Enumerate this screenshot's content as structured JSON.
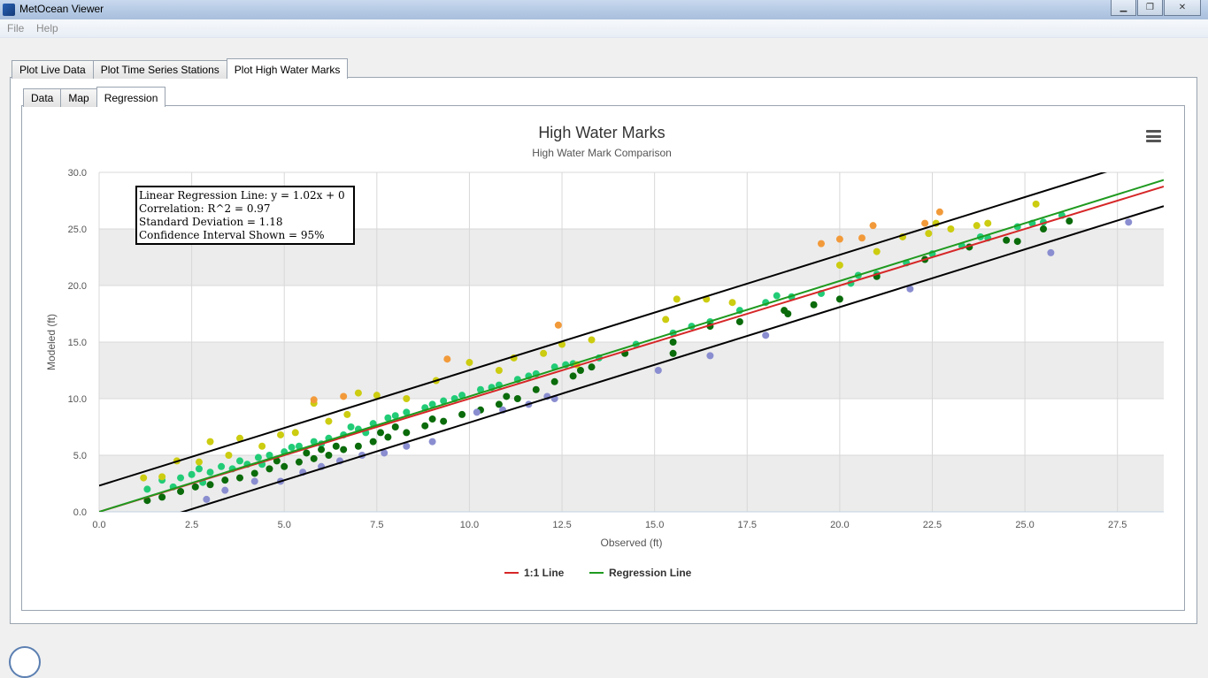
{
  "window": {
    "title": "MetOcean Viewer",
    "controls": [
      "minimize",
      "maximize",
      "close"
    ]
  },
  "menu": {
    "items": [
      "File",
      "Help"
    ]
  },
  "main_tabs": [
    {
      "label": "Plot Live Data",
      "active": false
    },
    {
      "label": "Plot Time Series Stations",
      "active": false
    },
    {
      "label": "Plot High Water Marks",
      "active": true
    }
  ],
  "sub_tabs": [
    {
      "label": "Data",
      "active": false
    },
    {
      "label": "Map",
      "active": false
    },
    {
      "label": "Regression",
      "active": true
    }
  ],
  "stats_box": {
    "line1": "Linear Regression Line: y = 1.02x + 0",
    "line2": "Correlation: R^2 = 0.97",
    "line3": "Standard Deviation = 1.18",
    "line4": "Confidence Interval Shown = 95%"
  },
  "chart_data": {
    "type": "scatter",
    "title": "High Water Marks",
    "subtitle": "High Water Mark Comparison",
    "xlabel": "Observed (ft)",
    "ylabel": "Modeled (ft)",
    "xlim": [
      0,
      28.75
    ],
    "ylim": [
      0,
      30
    ],
    "x_ticks": [
      "0.0",
      "2.5",
      "5.0",
      "7.5",
      "10.0",
      "12.5",
      "15.0",
      "17.5",
      "20.0",
      "22.5",
      "25.0",
      "27.5"
    ],
    "y_ticks": [
      "0.0",
      "5.0",
      "10.0",
      "15.0",
      "20.0",
      "25.0",
      "30.0"
    ],
    "grid": true,
    "legend_position": "bottom-center",
    "series": [
      {
        "name": "1:1 Line",
        "kind": "line",
        "color": "#d62728",
        "x": [
          0,
          28.75
        ],
        "y": [
          0,
          28.75
        ]
      },
      {
        "name": "Regression Line",
        "kind": "line",
        "color": "#1f9a1f",
        "x": [
          0,
          28.75
        ],
        "y": [
          0,
          29.33
        ]
      }
    ],
    "confidence_lines": [
      {
        "color": "#000000",
        "x": [
          0,
          28.75
        ],
        "y": [
          2.31,
          31.64
        ]
      },
      {
        "color": "#000000",
        "x": [
          0,
          28.75
        ],
        "y": [
          -2.31,
          27.02
        ]
      }
    ],
    "point_colors": {
      "light_green": "#22cc77",
      "dark_green": "#0a6b0a",
      "yellow": "#cccc11",
      "orange": "#f29a3a",
      "lavender": "#8a8ed0"
    },
    "points": {
      "light_green": [
        [
          1.3,
          2.0
        ],
        [
          1.7,
          2.8
        ],
        [
          2.0,
          2.2
        ],
        [
          2.2,
          3.0
        ],
        [
          2.5,
          3.3
        ],
        [
          2.8,
          2.6
        ],
        [
          3.0,
          3.5
        ],
        [
          3.3,
          4.0
        ],
        [
          3.6,
          3.8
        ],
        [
          4.0,
          4.2
        ],
        [
          4.3,
          4.8
        ],
        [
          4.6,
          5.0
        ],
        [
          5.0,
          5.3
        ],
        [
          5.4,
          5.8
        ],
        [
          5.8,
          6.2
        ],
        [
          6.2,
          6.5
        ],
        [
          6.6,
          6.8
        ],
        [
          7.0,
          7.3
        ],
        [
          7.4,
          7.8
        ],
        [
          7.8,
          8.3
        ],
        [
          8.3,
          8.8
        ],
        [
          8.8,
          9.2
        ],
        [
          9.3,
          9.8
        ],
        [
          9.8,
          10.3
        ],
        [
          10.3,
          10.8
        ],
        [
          10.8,
          11.2
        ],
        [
          11.3,
          11.7
        ],
        [
          11.8,
          12.2
        ],
        [
          12.3,
          12.8
        ],
        [
          12.8,
          13.1
        ],
        [
          13.5,
          13.6
        ],
        [
          14.5,
          14.8
        ],
        [
          15.5,
          15.8
        ],
        [
          16.5,
          16.8
        ],
        [
          17.3,
          17.8
        ],
        [
          18.0,
          18.5
        ],
        [
          18.7,
          19.0
        ],
        [
          19.5,
          19.3
        ],
        [
          20.3,
          20.2
        ],
        [
          21.0,
          21.0
        ],
        [
          21.8,
          22.0
        ],
        [
          22.5,
          22.8
        ],
        [
          23.3,
          23.5
        ],
        [
          24.0,
          24.2
        ],
        [
          24.8,
          25.2
        ],
        [
          25.5,
          25.6
        ],
        [
          26.0,
          26.2
        ],
        [
          3.8,
          4.5
        ],
        [
          5.2,
          5.7
        ],
        [
          6.8,
          7.5
        ],
        [
          8.0,
          8.5
        ],
        [
          9.0,
          9.5
        ],
        [
          10.6,
          11.0
        ],
        [
          11.6,
          12.0
        ],
        [
          12.6,
          13.0
        ],
        [
          16.0,
          16.4
        ],
        [
          18.3,
          19.1
        ],
        [
          20.5,
          20.9
        ],
        [
          23.8,
          24.3
        ],
        [
          25.2,
          25.5
        ],
        [
          2.7,
          3.8
        ],
        [
          4.4,
          4.2
        ],
        [
          6.0,
          6.0
        ],
        [
          7.2,
          7.0
        ],
        [
          9.6,
          10.0
        ]
      ],
      "dark_green": [
        [
          1.3,
          1.0
        ],
        [
          1.7,
          1.3
        ],
        [
          2.2,
          1.8
        ],
        [
          2.6,
          2.2
        ],
        [
          3.0,
          2.4
        ],
        [
          3.4,
          2.8
        ],
        [
          3.8,
          3.0
        ],
        [
          4.2,
          3.4
        ],
        [
          4.6,
          3.8
        ],
        [
          5.0,
          4.0
        ],
        [
          5.4,
          4.4
        ],
        [
          5.8,
          4.7
        ],
        [
          6.2,
          5.0
        ],
        [
          6.6,
          5.5
        ],
        [
          7.0,
          5.8
        ],
        [
          7.4,
          6.2
        ],
        [
          7.8,
          6.6
        ],
        [
          8.3,
          7.0
        ],
        [
          8.8,
          7.6
        ],
        [
          9.3,
          8.0
        ],
        [
          9.8,
          8.6
        ],
        [
          10.3,
          9.0
        ],
        [
          10.8,
          9.5
        ],
        [
          11.3,
          10.0
        ],
        [
          11.8,
          10.8
        ],
        [
          12.3,
          11.5
        ],
        [
          12.8,
          12.0
        ],
        [
          13.3,
          12.8
        ],
        [
          14.2,
          14.0
        ],
        [
          15.5,
          15.0
        ],
        [
          15.5,
          14.0
        ],
        [
          16.5,
          16.4
        ],
        [
          17.3,
          16.8
        ],
        [
          18.5,
          17.8
        ],
        [
          19.3,
          18.3
        ],
        [
          20.0,
          18.8
        ],
        [
          21.0,
          20.8
        ],
        [
          22.3,
          22.3
        ],
        [
          23.5,
          23.4
        ],
        [
          24.5,
          24.0
        ],
        [
          25.5,
          25.0
        ],
        [
          26.2,
          25.7
        ],
        [
          6.0,
          5.5
        ],
        [
          7.6,
          7.0
        ],
        [
          9.0,
          8.2
        ],
        [
          11.0,
          10.2
        ],
        [
          13.0,
          12.5
        ],
        [
          18.6,
          17.5
        ],
        [
          24.8,
          23.9
        ],
        [
          4.8,
          4.5
        ],
        [
          5.6,
          5.2
        ],
        [
          6.4,
          5.8
        ],
        [
          8.0,
          7.5
        ]
      ],
      "yellow": [
        [
          1.2,
          3.0
        ],
        [
          1.7,
          3.1
        ],
        [
          2.1,
          4.5
        ],
        [
          2.7,
          4.4
        ],
        [
          3.0,
          6.2
        ],
        [
          3.5,
          5.0
        ],
        [
          3.8,
          6.5
        ],
        [
          4.4,
          5.8
        ],
        [
          4.9,
          6.8
        ],
        [
          5.3,
          7.0
        ],
        [
          5.8,
          9.6
        ],
        [
          6.2,
          8.0
        ],
        [
          6.7,
          8.6
        ],
        [
          7.0,
          10.5
        ],
        [
          7.5,
          10.3
        ],
        [
          8.3,
          10.0
        ],
        [
          9.1,
          11.6
        ],
        [
          10.0,
          13.2
        ],
        [
          10.8,
          12.5
        ],
        [
          11.2,
          13.6
        ],
        [
          12.0,
          14.0
        ],
        [
          12.5,
          14.8
        ],
        [
          13.3,
          15.2
        ],
        [
          15.3,
          17.0
        ],
        [
          15.6,
          18.8
        ],
        [
          16.4,
          18.8
        ],
        [
          17.1,
          18.5
        ],
        [
          20.0,
          21.8
        ],
        [
          21.0,
          23.0
        ],
        [
          21.7,
          24.3
        ],
        [
          22.4,
          24.6
        ],
        [
          23.0,
          25.0
        ],
        [
          23.7,
          25.3
        ],
        [
          24.0,
          25.5
        ],
        [
          25.3,
          27.2
        ],
        [
          22.6,
          25.5
        ],
        [
          12.9,
          13.0
        ]
      ],
      "orange": [
        [
          5.8,
          9.9
        ],
        [
          6.6,
          10.2
        ],
        [
          9.4,
          13.5
        ],
        [
          12.4,
          16.5
        ],
        [
          19.5,
          23.7
        ],
        [
          20.0,
          24.1
        ],
        [
          20.6,
          24.2
        ],
        [
          20.9,
          25.3
        ],
        [
          22.3,
          25.5
        ],
        [
          22.7,
          26.5
        ]
      ],
      "lavender": [
        [
          2.9,
          1.1
        ],
        [
          3.4,
          1.9
        ],
        [
          4.2,
          2.7
        ],
        [
          4.9,
          2.7
        ],
        [
          5.5,
          3.5
        ],
        [
          6.0,
          4.0
        ],
        [
          6.5,
          4.5
        ],
        [
          7.1,
          5.0
        ],
        [
          7.7,
          5.2
        ],
        [
          8.3,
          5.8
        ],
        [
          9.0,
          6.2
        ],
        [
          10.2,
          8.8
        ],
        [
          10.9,
          9.0
        ],
        [
          11.6,
          9.5
        ],
        [
          12.1,
          10.2
        ],
        [
          12.3,
          10.0
        ],
        [
          15.1,
          12.5
        ],
        [
          16.5,
          13.8
        ],
        [
          18.0,
          15.6
        ],
        [
          21.9,
          19.7
        ],
        [
          25.7,
          22.9
        ],
        [
          27.8,
          25.6
        ]
      ]
    }
  }
}
